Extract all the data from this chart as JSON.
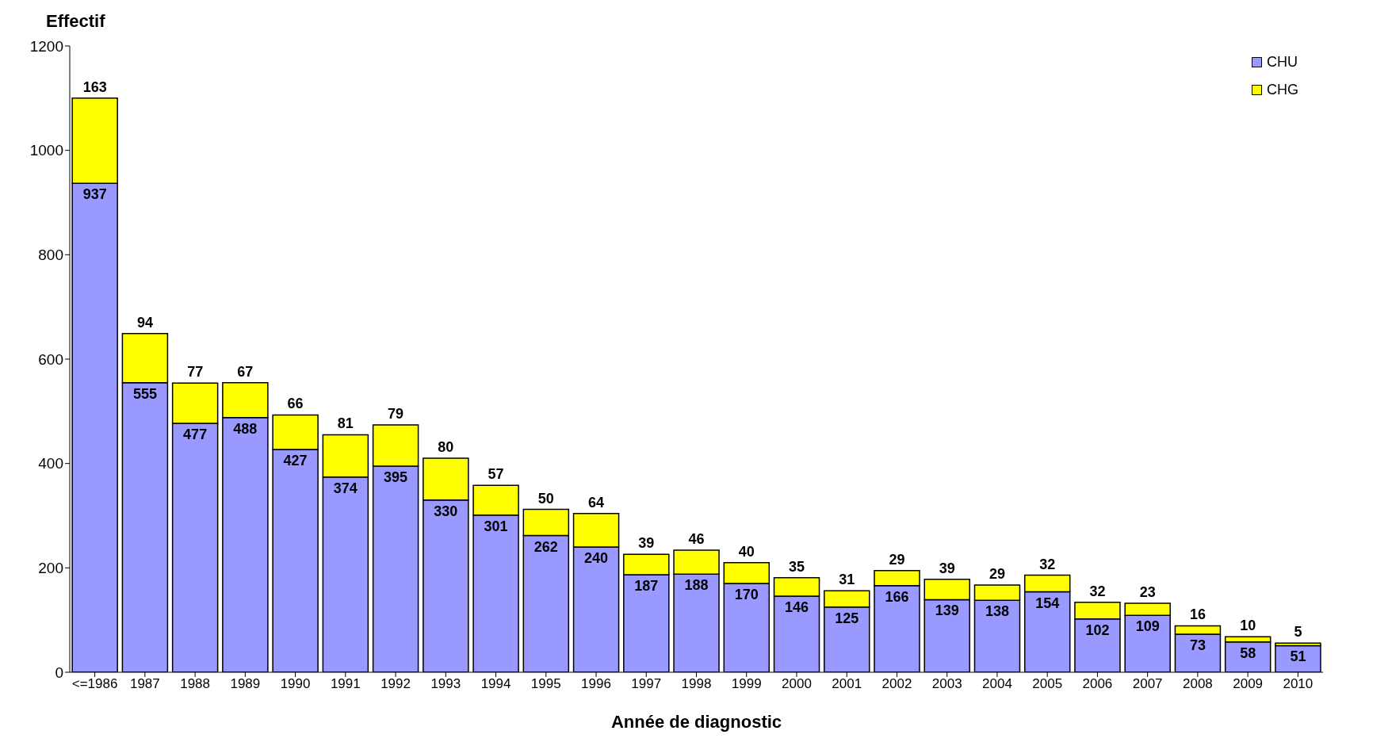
{
  "chart_data": {
    "type": "bar",
    "stacked": true,
    "ylabel": "Effectif",
    "xlabel": "Année de diagnostic",
    "categories": [
      "<=1986",
      "1987",
      "1988",
      "1989",
      "1990",
      "1991",
      "1992",
      "1993",
      "1994",
      "1995",
      "1996",
      "1997",
      "1998",
      "1999",
      "2000",
      "2001",
      "2002",
      "2003",
      "2004",
      "2005",
      "2006",
      "2007",
      "2008",
      "2009",
      "2010"
    ],
    "series": [
      {
        "name": "CHU",
        "color": "#9999ff",
        "values": [
          937,
          555,
          477,
          488,
          427,
          374,
          395,
          330,
          301,
          262,
          240,
          187,
          188,
          170,
          146,
          125,
          166,
          139,
          138,
          154,
          102,
          109,
          73,
          58,
          51
        ]
      },
      {
        "name": "CHG",
        "color": "#ffff00",
        "values": [
          163,
          94,
          77,
          67,
          66,
          81,
          79,
          80,
          57,
          50,
          64,
          39,
          46,
          40,
          35,
          31,
          29,
          39,
          29,
          32,
          32,
          23,
          16,
          10,
          5
        ]
      }
    ],
    "ylim": [
      0,
      1200
    ],
    "yticks": [
      0,
      200,
      400,
      600,
      800,
      1000,
      1200
    ],
    "legend": "top right",
    "data_labels": true
  }
}
